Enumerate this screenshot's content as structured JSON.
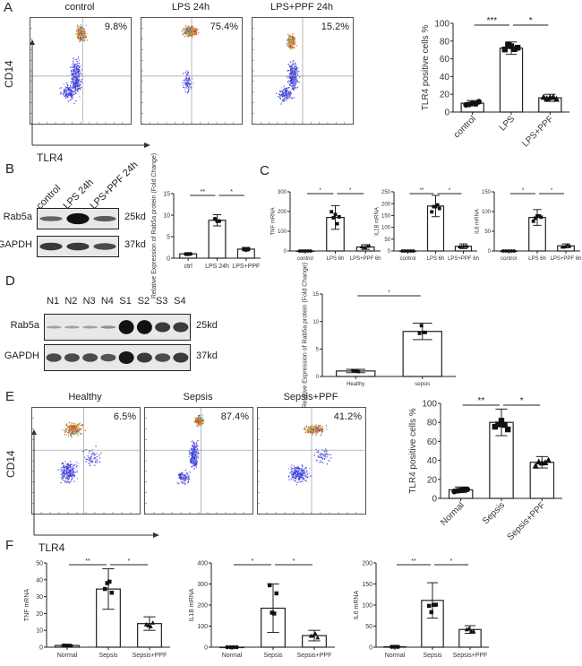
{
  "panels": {
    "A": {
      "label": "A",
      "flow": [
        {
          "title": "control",
          "pct": "9.8%"
        },
        {
          "title": "LPS 24h",
          "pct": "75.4%"
        },
        {
          "title": "LPS+PPF 24h",
          "pct": "15.2%"
        }
      ],
      "ylabel": "CD14",
      "xlabel": "TLR4"
    },
    "B": {
      "label": "B",
      "lanes": [
        "control",
        "LPS 24h",
        "LPS+PPF 24h"
      ],
      "rows": [
        {
          "name": "Rab5a",
          "kd": "25kd"
        },
        {
          "name": "GAPDH",
          "kd": "37kd"
        }
      ]
    },
    "C": {
      "label": "C"
    },
    "D": {
      "label": "D",
      "lanes": [
        "N1",
        "N2",
        "N3",
        "N4",
        "S1",
        "S2",
        "S3",
        "S4"
      ],
      "rows": [
        {
          "name": "Rab5a",
          "kd": "25kd"
        },
        {
          "name": "GAPDH",
          "kd": "37kd"
        }
      ]
    },
    "E": {
      "label": "E",
      "flow": [
        {
          "title": "Healthy",
          "pct": "6.5%"
        },
        {
          "title": "Sepsis",
          "pct": "87.4%"
        },
        {
          "title": "Sepsis+PPF",
          "pct": "41.2%"
        }
      ],
      "ylabel": "CD14",
      "xlabel": "TLR4"
    },
    "F": {
      "label": "F"
    }
  },
  "chart_data": [
    {
      "id": "A-bar",
      "type": "bar",
      "title": "",
      "ylabel": "TLR4 positive cells %",
      "categories": [
        "control",
        "LPS",
        "LPS+PPF"
      ],
      "values": [
        10,
        72,
        16
      ],
      "errors": [
        3,
        7,
        4
      ],
      "ylim": [
        0,
        100
      ],
      "yticks": [
        0,
        20,
        40,
        60,
        80,
        100
      ],
      "significance": [
        {
          "pair": [
            0,
            1
          ],
          "label": "***"
        },
        {
          "pair": [
            1,
            2
          ],
          "label": "*"
        }
      ]
    },
    {
      "id": "B-bar",
      "type": "bar",
      "ylabel": "Relative Expression of Rab5a protein (Fold Change)",
      "categories": [
        "ctrl",
        "LPS 24h",
        "LPS+PPF"
      ],
      "values": [
        1,
        8.8,
        2.1
      ],
      "errors": [
        0.2,
        1.3,
        0.4
      ],
      "ylim": [
        0,
        15
      ],
      "yticks": [
        0,
        5,
        10,
        15
      ],
      "significance": [
        {
          "pair": [
            0,
            1
          ],
          "label": "**"
        },
        {
          "pair": [
            1,
            2
          ],
          "label": "*"
        }
      ]
    },
    {
      "id": "C-TNF",
      "type": "bar",
      "ylabel": "TNF mRNA",
      "categories": [
        "control",
        "LPS 6h",
        "LPS+PPF 6h"
      ],
      "values": [
        0,
        170,
        20
      ],
      "errors": [
        0,
        60,
        12
      ],
      "ylim": [
        0,
        300
      ],
      "yticks": [
        0,
        100,
        200,
        300
      ],
      "significance": [
        {
          "pair": [
            0,
            1
          ],
          "label": "*"
        },
        {
          "pair": [
            1,
            2
          ],
          "label": "*"
        }
      ]
    },
    {
      "id": "C-IL1B",
      "type": "bar",
      "ylabel": "IL1B mRNA",
      "categories": [
        "control",
        "LPS 6h",
        "LPS+PPF 6h"
      ],
      "values": [
        0,
        190,
        20
      ],
      "errors": [
        0,
        45,
        10
      ],
      "ylim": [
        0,
        250
      ],
      "yticks": [
        0,
        50,
        100,
        150,
        200,
        250
      ],
      "significance": [
        {
          "pair": [
            0,
            1
          ],
          "label": "**"
        },
        {
          "pair": [
            1,
            2
          ],
          "label": "*"
        }
      ]
    },
    {
      "id": "C-IL6",
      "type": "bar",
      "ylabel": "IL6 mRNA",
      "categories": [
        "control",
        "LPS 6h",
        "LPS+PPF 6h"
      ],
      "values": [
        0,
        85,
        13
      ],
      "errors": [
        0,
        20,
        5
      ],
      "ylim": [
        0,
        150
      ],
      "yticks": [
        0,
        50,
        100,
        150
      ],
      "significance": [
        {
          "pair": [
            0,
            1
          ],
          "label": "*"
        },
        {
          "pair": [
            1,
            2
          ],
          "label": "*"
        }
      ]
    },
    {
      "id": "D-bar",
      "type": "bar",
      "ylabel": "Relative Expression of Rab5a protein (Fold Change)",
      "categories": [
        "Healthy",
        "sepsis"
      ],
      "values": [
        1,
        8.2
      ],
      "errors": [
        0.3,
        1.5
      ],
      "ylim": [
        0,
        15
      ],
      "yticks": [
        0,
        5,
        10,
        15
      ],
      "significance": [
        {
          "pair": [
            0,
            1
          ],
          "label": "*"
        }
      ]
    },
    {
      "id": "E-bar",
      "type": "bar",
      "ylabel": "TLR4 positive cells %",
      "categories": [
        "Normal",
        "Sepsis",
        "Sepsis+PPF"
      ],
      "values": [
        9,
        80,
        38
      ],
      "errors": [
        3,
        14,
        6
      ],
      "ylim": [
        0,
        100
      ],
      "yticks": [
        0,
        20,
        40,
        60,
        80,
        100
      ],
      "significance": [
        {
          "pair": [
            0,
            1
          ],
          "label": "**"
        },
        {
          "pair": [
            1,
            2
          ],
          "label": "*"
        }
      ]
    },
    {
      "id": "F-TNF",
      "type": "bar",
      "ylabel": "TNF mRNA",
      "categories": [
        "Normal",
        "Sepsis",
        "Sepsis+PPF"
      ],
      "values": [
        1,
        34.5,
        14
      ],
      "errors": [
        0.3,
        12,
        4
      ],
      "ylim": [
        0,
        50
      ],
      "yticks": [
        0,
        10,
        20,
        30,
        40,
        50
      ],
      "significance": [
        {
          "pair": [
            0,
            1
          ],
          "label": "**"
        },
        {
          "pair": [
            1,
            2
          ],
          "label": "*"
        }
      ]
    },
    {
      "id": "F-IL1B",
      "type": "bar",
      "ylabel": "IL1B mRNA",
      "categories": [
        "Normal",
        "Sepsis",
        "Sepsis+PPF"
      ],
      "values": [
        0,
        185,
        55
      ],
      "errors": [
        0,
        115,
        25
      ],
      "ylim": [
        0,
        400
      ],
      "yticks": [
        0,
        100,
        200,
        300,
        400
      ],
      "significance": [
        {
          "pair": [
            0,
            1
          ],
          "label": "*"
        },
        {
          "pair": [
            1,
            2
          ],
          "label": "*"
        }
      ]
    },
    {
      "id": "F-IL6",
      "type": "bar",
      "ylabel": "IL6 mRNA",
      "categories": [
        "Normal",
        "Sepsis",
        "Sepsis+PPF"
      ],
      "values": [
        1,
        111,
        42
      ],
      "errors": [
        0.5,
        42,
        9
      ],
      "ylim": [
        0,
        200
      ],
      "yticks": [
        0,
        50,
        100,
        150,
        200
      ],
      "significance": [
        {
          "pair": [
            0,
            1
          ],
          "label": "**"
        },
        {
          "pair": [
            1,
            2
          ],
          "label": "*"
        }
      ]
    }
  ]
}
